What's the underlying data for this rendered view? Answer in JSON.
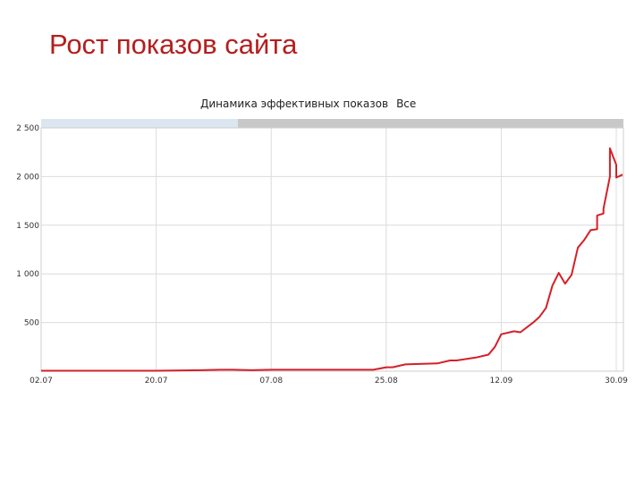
{
  "slide": {
    "title": "Рост показов сайта",
    "title_color": "#b41e1e"
  },
  "chart_data": {
    "type": "line",
    "title": "Динамика эффективных показов",
    "filter_label": "Все",
    "xlabel": "",
    "ylabel": "",
    "ylim": [
      0,
      2500
    ],
    "grid": true,
    "line_color": "#d42027",
    "range_selector_colors": {
      "selected": "#dbe6f0",
      "unselected": "#c8c8c8"
    },
    "y_ticks": [
      {
        "value": 500,
        "label": "500"
      },
      {
        "value": 1000,
        "label": "1 000"
      },
      {
        "value": 1500,
        "label": "1 500"
      },
      {
        "value": 2000,
        "label": "2 000"
      },
      {
        "value": 2500,
        "label": "2 500"
      }
    ],
    "x_ticks": [
      "02.07",
      "20.07",
      "07.08",
      "25.08",
      "12.09",
      "30.09"
    ],
    "x_start": "2013-07-02",
    "x_end": "2013-09-30",
    "series": [
      {
        "values": [
          [
            "2013-07-02",
            5
          ],
          [
            "2013-07-10",
            5
          ],
          [
            "2013-07-20",
            5
          ],
          [
            "2013-07-27",
            10
          ],
          [
            "2013-07-30",
            15
          ],
          [
            "2013-08-01",
            15
          ],
          [
            "2013-08-04",
            10
          ],
          [
            "2013-08-07",
            15
          ],
          [
            "2013-08-15",
            15
          ],
          [
            "2013-08-20",
            15
          ],
          [
            "2013-08-23",
            15
          ],
          [
            "2013-08-25",
            40
          ],
          [
            "2013-08-26",
            40
          ],
          [
            "2013-08-28",
            70
          ],
          [
            "2013-09-02",
            80
          ],
          [
            "2013-09-04",
            110
          ],
          [
            "2013-09-05",
            110
          ],
          [
            "2013-09-08",
            140
          ],
          [
            "2013-09-10",
            170
          ],
          [
            "2013-09-11",
            250
          ],
          [
            "2013-09-12",
            380
          ],
          [
            "2013-09-14",
            410
          ],
          [
            "2013-09-15",
            400
          ],
          [
            "2013-09-17",
            500
          ],
          [
            "2013-09-18",
            560
          ],
          [
            "2013-09-19",
            650
          ],
          [
            "2013-09-20",
            880
          ],
          [
            "2013-09-21",
            1010
          ],
          [
            "2013-09-22",
            900
          ],
          [
            "2013-09-23",
            990
          ],
          [
            "2013-09-24",
            1270
          ],
          [
            "2013-09-25",
            1350
          ],
          [
            "2013-09-26",
            1450
          ],
          [
            "2013-09-27",
            1460
          ],
          [
            "2013-09-27",
            1600
          ],
          [
            "2013-09-28",
            1620
          ],
          [
            "2013-09-28",
            1670
          ],
          [
            "2013-09-29",
            2000
          ],
          [
            "2013-09-29",
            2290
          ],
          [
            "2013-09-30",
            2120
          ],
          [
            "2013-09-30",
            1990
          ],
          [
            "2013-10-01",
            2020
          ]
        ]
      }
    ]
  }
}
